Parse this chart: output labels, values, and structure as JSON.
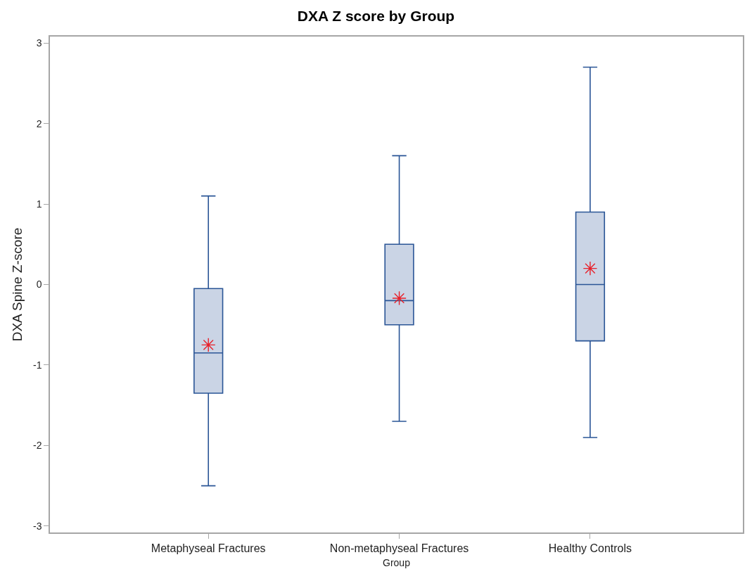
{
  "chart_data": {
    "type": "box",
    "title": "DXA Z score by Group",
    "xlabel": "Group",
    "ylabel": "DXA Spine Z-score",
    "categories": [
      "Metaphyseal Fractures",
      "Non-metaphyseal Fractures",
      "Healthy Controls"
    ],
    "series": [
      {
        "color": "#2a5596",
        "boxes": [
          {
            "low": -2.5,
            "q1": -1.35,
            "median": -0.85,
            "q3": -0.05,
            "high": 1.1,
            "mean": -0.75
          },
          {
            "low": -1.7,
            "q1": -0.5,
            "median": -0.2,
            "q3": 0.5,
            "high": 1.6,
            "mean": -0.17
          },
          {
            "low": -1.9,
            "q1": -0.7,
            "median": 0,
            "q3": 0.9,
            "high": 2.7,
            "mean": 0.2
          }
        ]
      }
    ],
    "ylim": [
      -3.08,
      3.08
    ],
    "yticks": [
      -3,
      -2,
      -1,
      0,
      1,
      2,
      3
    ]
  }
}
